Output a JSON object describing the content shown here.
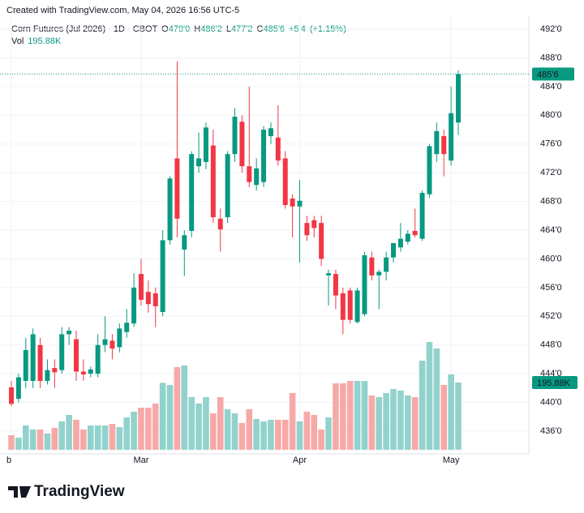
{
  "caption": "Created with TradingView.com, May 04, 2026 16:56 UTC-5",
  "footer": {
    "brand": "TradingView"
  },
  "chart_data": {
    "type": "candlestick",
    "title": "Corn Futures (Jul 2026) · 1D · CBOT",
    "legend_items": [
      {
        "key": "O",
        "value": 479,
        "label": "479'0"
      },
      {
        "key": "H",
        "value": 486.25,
        "label": "486'2"
      },
      {
        "key": "L",
        "value": 477.25,
        "label": "477'2"
      },
      {
        "key": "C",
        "value": 485.75,
        "label": "485'6"
      }
    ],
    "change": "+5'4",
    "change_pct": {
      "value": 1.15,
      "label": "(+1.15%)"
    },
    "volume_title": "Vol",
    "volume_last": {
      "value": 195880,
      "label": "195.88K"
    },
    "last_price": {
      "value": 485.75,
      "label": "485'6"
    },
    "up_color": "#089981",
    "down_color": "#f23645",
    "up_volume_color": "#92d2cc",
    "down_volume_color": "#f7a9a7",
    "grid": true,
    "ylim": [
      436,
      492
    ],
    "yticks": [
      {
        "value": 436,
        "label": "436'0"
      },
      {
        "value": 440,
        "label": "440'0"
      },
      {
        "value": 444,
        "label": "444'0"
      },
      {
        "value": 448,
        "label": "448'0"
      },
      {
        "value": 452,
        "label": "452'0"
      },
      {
        "value": 456,
        "label": "456'0"
      },
      {
        "value": 460,
        "label": "460'0"
      },
      {
        "value": 464,
        "label": "464'0"
      },
      {
        "value": 468,
        "label": "468'0"
      },
      {
        "value": 472,
        "label": "472'0"
      },
      {
        "value": 476,
        "label": "476'0"
      },
      {
        "value": 480,
        "label": "480'0"
      },
      {
        "value": 484,
        "label": "484'0"
      },
      {
        "value": 488,
        "label": "488'0"
      },
      {
        "value": 492,
        "label": "492'0"
      }
    ],
    "categories": [
      "b",
      null,
      null,
      null,
      null,
      null,
      null,
      null,
      null,
      null,
      null,
      null,
      null,
      null,
      null,
      null,
      null,
      null,
      "Mar",
      null,
      null,
      null,
      null,
      null,
      null,
      null,
      null,
      null,
      null,
      null,
      null,
      null,
      null,
      null,
      null,
      null,
      null,
      null,
      null,
      null,
      "Apr",
      null,
      null,
      null,
      null,
      null,
      null,
      null,
      null,
      null,
      null,
      null,
      null,
      null,
      null,
      null,
      null,
      null,
      null,
      null,
      null,
      "May",
      null
    ],
    "open": [
      442.1,
      440.5,
      443,
      443,
      448,
      443,
      444.8,
      444.5,
      449.5,
      448.8,
      444.3,
      444,
      444,
      448,
      448.6,
      447.7,
      449.8,
      451,
      457.9,
      455.4,
      455.2,
      452.6,
      462.6,
      474,
      461.3,
      463.9,
      472.9,
      473.5,
      475.8,
      465.6,
      465.8,
      474.6,
      479.1,
      472.9,
      470.3,
      470.7,
      477.1,
      476.9,
      474,
      468.4,
      467.3,
      465,
      465.4,
      465,
      457.7,
      457.9,
      455.2,
      455.6,
      451.2,
      452.3,
      460.2,
      457.7,
      458.2,
      460.2,
      461.6,
      462.4,
      463.9,
      462.8,
      469,
      474.6,
      477.1,
      473.7,
      479
    ],
    "high": [
      443,
      444,
      449,
      450.3,
      449,
      446,
      446,
      450.5,
      450.5,
      450,
      446,
      445,
      449.5,
      452,
      449.5,
      451,
      453,
      458,
      460,
      457,
      456,
      464,
      471.5,
      487.5,
      464,
      475,
      477.6,
      479,
      478,
      467,
      475,
      481,
      480,
      484,
      474,
      478.5,
      479,
      481.4,
      475,
      469,
      471,
      466,
      466,
      466,
      458.5,
      458.5,
      456,
      456,
      456,
      461,
      461,
      458.5,
      461,
      462,
      465,
      464,
      467,
      469.5,
      476,
      479,
      478,
      484,
      486.25
    ],
    "low": [
      439.5,
      440,
      442,
      442,
      442,
      442.5,
      442,
      444,
      448,
      443,
      443,
      443.5,
      443.5,
      447,
      446,
      447,
      449,
      450.5,
      453.5,
      452.5,
      450.5,
      452,
      462,
      463,
      457.6,
      463,
      472,
      472.5,
      465,
      461,
      465,
      473.5,
      472,
      470,
      469.5,
      470,
      476,
      473,
      467,
      463,
      459.5,
      462.5,
      463,
      459,
      453.5,
      453,
      449.5,
      451,
      451,
      452,
      457,
      453,
      457,
      459.5,
      461,
      462,
      463,
      462.5,
      468.5,
      473.5,
      471.5,
      473,
      477.25
    ],
    "close": [
      439.8,
      443.5,
      447.3,
      449.5,
      443,
      444.5,
      444.2,
      449.5,
      450,
      444.3,
      443.9,
      444.6,
      448,
      448.8,
      447.5,
      450.3,
      451.1,
      456,
      454.3,
      453.7,
      453.4,
      462.6,
      471.2,
      465.6,
      463.3,
      474.6,
      474,
      478.3,
      465.8,
      464.1,
      474.6,
      479.8,
      472.9,
      470.7,
      472.6,
      478,
      478.2,
      473.7,
      467.5,
      467.3,
      468.1,
      463.3,
      464.3,
      460,
      458,
      454.9,
      451.5,
      451.5,
      455.6,
      460.5,
      457.7,
      458.2,
      460.2,
      462.2,
      462.8,
      463.5,
      463.3,
      469.2,
      475.7,
      477.8,
      474.6,
      480.3,
      485.75
    ],
    "volume": [
      42480,
      35400,
      70800,
      59000,
      59000,
      47200,
      63720,
      82600,
      101480,
      87320,
      59000,
      70800,
      70800,
      70800,
      75520,
      66080,
      94400,
      110920,
      122720,
      122720,
      134520,
      195000,
      188800,
      240720,
      245440,
      153400,
      134520,
      153400,
      106200,
      153400,
      118000,
      106200,
      77880,
      118000,
      89680,
      82600,
      87320,
      87320,
      87320,
      165200,
      82600,
      110920,
      101480,
      59000,
      94400,
      193520,
      193520,
      200600,
      200600,
      200600,
      158120,
      153400,
      165200,
      177000,
      172280,
      158120,
      153400,
      259600,
      313880,
      295000,
      188800,
      219480,
      195880
    ]
  }
}
